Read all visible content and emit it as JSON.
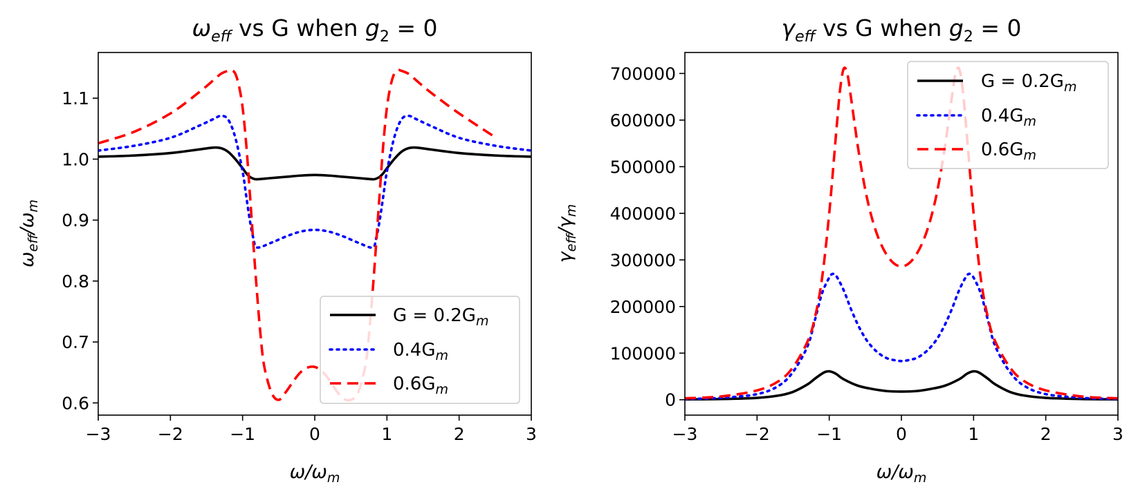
{
  "chart_data": [
    {
      "type": "line",
      "title": "ω_eff vs G when g₂ = 0",
      "title_parts": {
        "main": "ω",
        "sub": "eff",
        "rest": " vs G when ",
        "g": "g",
        "g_sub": "2",
        "tail": " = 0"
      },
      "xlabel_parts": {
        "a": "ω/ω",
        "a_sub": "m"
      },
      "ylabel_parts": {
        "a": "ω",
        "a_sub": "eff",
        "b": "/ω",
        "b_sub": "m"
      },
      "xlabel": "ω/ω_m",
      "ylabel": "ω_eff/ω_m",
      "xlim": [
        -3,
        3
      ],
      "ylim": [
        0.58,
        1.175
      ],
      "xticks": [
        -3,
        -2,
        -1,
        0,
        1,
        2,
        3
      ],
      "xtick_labels": [
        "−3",
        "−2",
        "−1",
        "0",
        "1",
        "2",
        "3"
      ],
      "yticks": [
        0.6,
        0.7,
        0.8,
        0.9,
        1.0,
        1.1
      ],
      "ytick_labels": [
        "0.6",
        "0.7",
        "0.8",
        "0.9",
        "1.0",
        "1.1"
      ],
      "legend_position": "lower-right",
      "series": [
        {
          "name": "G = 0.2G_m",
          "legend_main": "G = 0.2G",
          "legend_sub": "m",
          "color": "#000000",
          "style": "solid",
          "x": [
            -3,
            -2.5,
            -2,
            -1.6,
            -1.4,
            -1.3,
            -1.2,
            -1.1,
            -1.0,
            -0.95,
            -0.9,
            -0.85,
            -0.8,
            -0.6,
            -0.4,
            -0.2,
            0,
            0.2,
            0.4,
            0.6,
            0.8,
            0.85,
            0.9,
            0.95,
            1.0,
            1.1,
            1.2,
            1.3,
            1.4,
            1.6,
            2.0,
            2.5,
            3.0
          ],
          "y": [
            1.004,
            1.006,
            1.01,
            1.016,
            1.019,
            1.018,
            1.012,
            1.0,
            0.985,
            0.977,
            0.971,
            0.968,
            0.967,
            0.969,
            0.971,
            0.973,
            0.974,
            0.973,
            0.971,
            0.969,
            0.967,
            0.968,
            0.971,
            0.977,
            0.985,
            1.0,
            1.012,
            1.018,
            1.019,
            1.016,
            1.01,
            1.006,
            1.004
          ]
        },
        {
          "name": "0.4G_m",
          "legend_main": "0.4G",
          "legend_sub": "m",
          "color": "#0000ff",
          "style": "dotted",
          "x": [
            -3,
            -2.5,
            -2,
            -1.6,
            -1.4,
            -1.3,
            -1.2,
            -1.1,
            -1.0,
            -0.95,
            -0.9,
            -0.85,
            -0.8,
            -0.6,
            -0.4,
            -0.2,
            0,
            0.2,
            0.4,
            0.6,
            0.8,
            0.85,
            0.9,
            0.95,
            1.0,
            1.1,
            1.2,
            1.3,
            1.4,
            1.6,
            2.0,
            2.5,
            3.0
          ],
          "y": [
            1.014,
            1.022,
            1.035,
            1.055,
            1.066,
            1.071,
            1.065,
            1.035,
            0.98,
            0.94,
            0.9,
            0.87,
            0.855,
            0.863,
            0.873,
            0.881,
            0.884,
            0.881,
            0.873,
            0.863,
            0.855,
            0.87,
            0.9,
            0.94,
            0.98,
            1.035,
            1.065,
            1.071,
            1.066,
            1.055,
            1.035,
            1.022,
            1.014
          ]
        },
        {
          "name": "0.6G_m",
          "legend_main": "0.6G",
          "legend_sub": "m",
          "color": "#ff0000",
          "style": "dashed",
          "x": [
            -3,
            -2.5,
            -2,
            -1.6,
            -1.4,
            -1.3,
            -1.2,
            -1.15,
            -1.1,
            -1.05,
            -1.0,
            -0.95,
            -0.9,
            -0.85,
            -0.8,
            -0.75,
            -0.7,
            -0.6,
            -0.5,
            -0.4,
            -0.3,
            -0.2,
            -0.1,
            0,
            0.1,
            0.2,
            0.3,
            0.4,
            0.5,
            0.6,
            0.7,
            0.75,
            0.8,
            0.85,
            0.9,
            0.95,
            1.0,
            1.05,
            1.1,
            1.15,
            1.2,
            1.3,
            1.4,
            1.6,
            2.0,
            2.5
          ],
          "y": [
            1.026,
            1.045,
            1.075,
            1.11,
            1.13,
            1.14,
            1.145,
            1.146,
            1.14,
            1.12,
            1.085,
            1.025,
            0.945,
            0.86,
            0.78,
            0.71,
            0.66,
            0.617,
            0.605,
            0.618,
            0.635,
            0.65,
            0.658,
            0.659,
            0.652,
            0.638,
            0.62,
            0.607,
            0.605,
            0.617,
            0.66,
            0.71,
            0.78,
            0.86,
            0.945,
            1.025,
            1.085,
            1.12,
            1.14,
            1.146,
            1.145,
            1.14,
            1.13,
            1.11,
            1.075,
            1.036
          ]
        }
      ]
    },
    {
      "type": "line",
      "title": "γ_eff vs G when g₂ = 0",
      "title_parts": {
        "main": "γ",
        "sub": "eff",
        "rest": " vs G when ",
        "g": "g",
        "g_sub": "2",
        "tail": " = 0"
      },
      "xlabel_parts": {
        "a": "ω/ω",
        "a_sub": "m"
      },
      "ylabel_parts": {
        "a": "γ",
        "a_sub": "eff",
        "b": "/γ",
        "b_sub": "m"
      },
      "xlabel": "ω/ω_m",
      "ylabel": "γ_eff/γ_m",
      "xlim": [
        -3,
        3
      ],
      "ylim": [
        -33000,
        745000
      ],
      "xticks": [
        -3,
        -2,
        -1,
        0,
        1,
        2,
        3
      ],
      "xtick_labels": [
        "−3",
        "−2",
        "−1",
        "0",
        "1",
        "2",
        "3"
      ],
      "yticks": [
        0,
        100000,
        200000,
        300000,
        400000,
        500000,
        600000,
        700000
      ],
      "ytick_labels": [
        "0",
        "100000",
        "200000",
        "300000",
        "400000",
        "500000",
        "600000",
        "700000"
      ],
      "legend_position": "top-right",
      "series": [
        {
          "name": "G = 0.2G_m",
          "legend_main": "G = 0.2G",
          "legend_sub": "m",
          "color": "#000000",
          "style": "solid",
          "x": [
            -3,
            -2.5,
            -2,
            -1.7,
            -1.5,
            -1.3,
            -1.2,
            -1.1,
            -1.05,
            -1.0,
            -0.95,
            -0.9,
            -0.8,
            -0.6,
            -0.4,
            -0.2,
            0,
            0.2,
            0.4,
            0.6,
            0.8,
            0.9,
            0.95,
            1.0,
            1.05,
            1.1,
            1.2,
            1.3,
            1.5,
            1.7,
            2.0,
            2.5,
            3.0
          ],
          "y": [
            800,
            1500,
            4000,
            9000,
            17000,
            33000,
            45000,
            56000,
            60000,
            61000,
            59000,
            55000,
            44000,
            30000,
            23000,
            18500,
            17500,
            18500,
            23000,
            30000,
            44000,
            55000,
            59000,
            61000,
            60000,
            56000,
            45000,
            33000,
            17000,
            9000,
            4000,
            1500,
            800
          ]
        },
        {
          "name": "0.4G_m",
          "legend_main": "0.4G",
          "legend_sub": "m",
          "color": "#0000ff",
          "style": "dotted",
          "x": [
            -3,
            -2.5,
            -2,
            -1.7,
            -1.5,
            -1.3,
            -1.2,
            -1.1,
            -1.0,
            -0.95,
            -0.9,
            -0.8,
            -0.7,
            -0.6,
            -0.5,
            -0.4,
            -0.3,
            -0.2,
            -0.1,
            0,
            0.1,
            0.2,
            0.3,
            0.4,
            0.5,
            0.6,
            0.7,
            0.8,
            0.9,
            0.95,
            1.0,
            1.1,
            1.2,
            1.3,
            1.5,
            1.7,
            2.0,
            2.5,
            3.0
          ],
          "y": [
            1500,
            4000,
            12000,
            30000,
            60000,
            115000,
            170000,
            228000,
            262000,
            270000,
            265000,
            235000,
            195000,
            160000,
            132000,
            112000,
            98000,
            89000,
            85000,
            83000,
            85000,
            89000,
            98000,
            112000,
            132000,
            160000,
            195000,
            235000,
            265000,
            270000,
            262000,
            228000,
            170000,
            115000,
            60000,
            30000,
            12000,
            4000,
            1500
          ]
        },
        {
          "name": "0.6G_m",
          "legend_main": "0.6G",
          "legend_sub": "m",
          "color": "#ff0000",
          "style": "dashed",
          "x": [
            -3,
            -2.5,
            -2,
            -1.7,
            -1.5,
            -1.3,
            -1.2,
            -1.1,
            -1.0,
            -0.9,
            -0.85,
            -0.8,
            -0.75,
            -0.7,
            -0.6,
            -0.5,
            -0.4,
            -0.3,
            -0.2,
            -0.1,
            0,
            0.1,
            0.2,
            0.3,
            0.4,
            0.5,
            0.6,
            0.7,
            0.75,
            0.8,
            0.85,
            0.9,
            1.0,
            1.1,
            1.2,
            1.3,
            1.5,
            1.7,
            2.0,
            2.5,
            3.0
          ],
          "y": [
            3000,
            7000,
            20000,
            40000,
            70000,
            125000,
            175000,
            260000,
            400000,
            580000,
            665000,
            710000,
            700000,
            650000,
            540000,
            450000,
            385000,
            340000,
            310000,
            292000,
            286000,
            292000,
            310000,
            340000,
            385000,
            450000,
            540000,
            650000,
            700000,
            710000,
            665000,
            580000,
            400000,
            260000,
            175000,
            125000,
            70000,
            40000,
            20000,
            7000,
            3000
          ]
        }
      ]
    }
  ]
}
